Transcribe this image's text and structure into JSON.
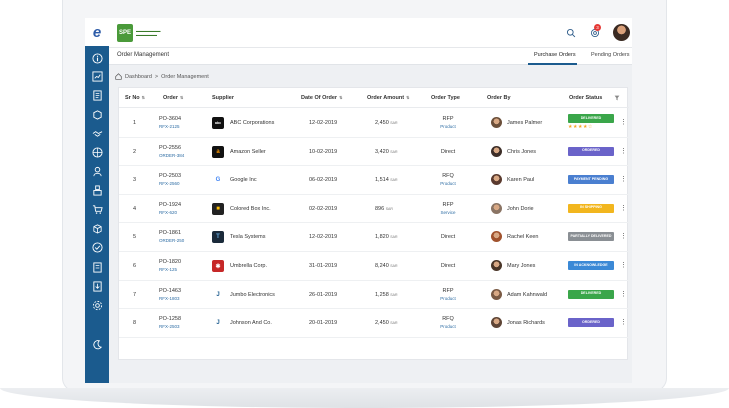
{
  "colors": {
    "sidebar": "#1b5b8e",
    "delivered": "#3aa64a",
    "ordered": "#6a63c9",
    "payment_pending": "#4a7fd0",
    "in_shipping": "#f2b61e",
    "partially_delivered": "#8a8f94",
    "in_acknowledge": "#3b89d6"
  },
  "header": {
    "app_logo_letter": "e",
    "brand_abbr": "SPE",
    "cart_badge": "3"
  },
  "subbar": {
    "title": "Order Management",
    "tabs": [
      "Purchase Orders",
      "Pending Orders"
    ]
  },
  "breadcrumb": {
    "home": "Dashboard",
    "separator": ">",
    "current": "Order Management"
  },
  "table": {
    "columns": [
      "Sr No",
      "Order",
      "Supplier",
      "Date Of Order",
      "Order Amount",
      "Order Type",
      "Order By",
      "Order Status"
    ],
    "currency": "SAR",
    "rows": [
      {
        "sr": "1",
        "order": "PO-3604",
        "ref": "RFX-2125",
        "supplier": "ABC Corporations",
        "logo": "abc",
        "date": "12-02-2019",
        "amount": "2,450",
        "type": "RFP",
        "type_sub": "Product",
        "by": "James Palmer",
        "status": "DELIVERED",
        "status_color": "#3aa64a",
        "stars": "★★★★☆"
      },
      {
        "sr": "2",
        "order": "PO-2556",
        "ref": "ORDER-384",
        "supplier": "Amazon Seller",
        "logo": "a",
        "date": "10-02-2019",
        "amount": "3,420",
        "type": "Direct",
        "type_sub": "",
        "by": "Chris Jones",
        "status": "ORDERED",
        "status_color": "#6a63c9",
        "stars": ""
      },
      {
        "sr": "3",
        "order": "PO-2503",
        "ref": "RFX-2560",
        "supplier": "Google Inc",
        "logo": "G",
        "date": "06-02-2019",
        "amount": "1,514",
        "type": "RFQ",
        "type_sub": "Product",
        "by": "Karen Paul",
        "status": "PAYMENT PENDING",
        "status_color": "#4a7fd0",
        "stars": ""
      },
      {
        "sr": "4",
        "order": "PO-1924",
        "ref": "RFX-620",
        "supplier": "Colored Box Inc.",
        "logo": "■",
        "date": "02-02-2019",
        "amount": "896",
        "type": "RFP",
        "type_sub": "Service",
        "by": "John Dorie",
        "status": "IN SHIPPING",
        "status_color": "#f2b61e",
        "stars": ""
      },
      {
        "sr": "5",
        "order": "PO-1861",
        "ref": "ORDER-250",
        "supplier": "Tesla Systems",
        "logo": "T",
        "date": "12-02-2019",
        "amount": "1,820",
        "type": "Direct",
        "type_sub": "",
        "by": "Rachel Keen",
        "status": "PARTIALLY DELIVERED",
        "status_color": "#8a8f94",
        "stars": ""
      },
      {
        "sr": "6",
        "order": "PO-1820",
        "ref": "RFX-125",
        "supplier": "Umbrella Corp.",
        "logo": "✱",
        "date": "31-01-2019",
        "amount": "8,240",
        "type": "Direct",
        "type_sub": "",
        "by": "Mary Jones",
        "status": "IN ACKNOWLEDGE",
        "status_color": "#3b89d6",
        "stars": ""
      },
      {
        "sr": "7",
        "order": "PO-1463",
        "ref": "RFX-1803",
        "supplier": "Jumbo Electronics",
        "logo": "J",
        "date": "26-01-2019",
        "amount": "1,258",
        "type": "RFP",
        "type_sub": "Product",
        "by": "Adam Kahnwald",
        "status": "DELIVERED",
        "status_color": "#3aa64a",
        "stars": ""
      },
      {
        "sr": "8",
        "order": "PO-1258",
        "ref": "RFX-2503",
        "supplier": "Johnson And Co.",
        "logo": "J",
        "date": "20-01-2019",
        "amount": "2,450",
        "type": "RFQ",
        "type_sub": "Product",
        "by": "Jonas Richards",
        "status": "ORDERED",
        "status_color": "#6a63c9",
        "stars": ""
      }
    ]
  }
}
